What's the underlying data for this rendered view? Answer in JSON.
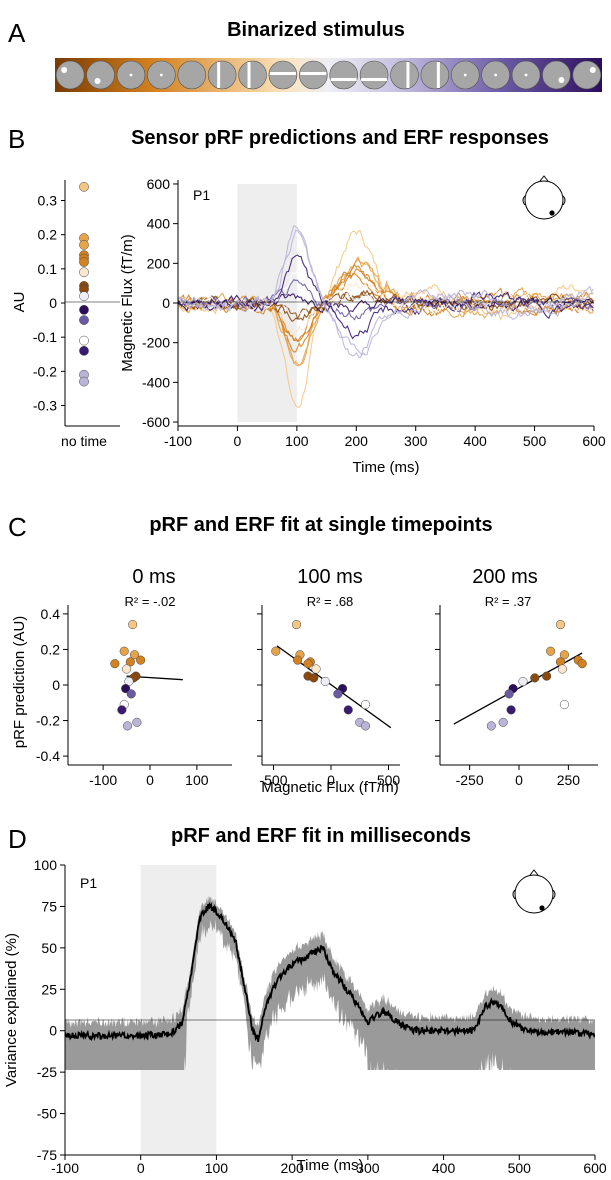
{
  "panels": {
    "a": {
      "letter": "A",
      "title": "Binarized stimulus"
    },
    "b": {
      "letter": "B",
      "title": "Sensor pRF predictions and ERF responses"
    },
    "c": {
      "letter": "C",
      "title": "pRF and ERF fit at single timepoints"
    },
    "d": {
      "letter": "D",
      "title": "pRF and ERF fit in milliseconds"
    }
  },
  "colors": {
    "orange_dark": "#8a4a10",
    "orange": "#d4821f",
    "orange_light": "#f4c684",
    "lavender": "#b9b4d8",
    "purple": "#6a5aa4",
    "purple_dark": "#2c0d5c",
    "gray_fill": "#9a9a9a",
    "shade": "#eeeeee"
  },
  "chart_data": [
    {
      "type": "scatter",
      "panel": "B-left",
      "ylabel": "AU",
      "x_tick_label": "no time",
      "ylim": [
        -0.36,
        0.36
      ],
      "y_ticks": [
        "0.3",
        "0.2",
        "0.1",
        "0",
        "-0.1",
        "-0.2",
        "-0.3"
      ],
      "values": [
        0.34,
        0.19,
        0.17,
        0.14,
        0.13,
        0.12,
        0.09,
        0.05,
        0.04,
        0.02,
        -0.02,
        -0.05,
        -0.11,
        -0.14,
        -0.21,
        -0.23
      ]
    },
    {
      "type": "line",
      "panel": "B-right",
      "label": "P1",
      "xlabel": "Time (ms)",
      "ylabel": "Magnetic Flux (fT/m)",
      "xlim": [
        -100,
        600
      ],
      "ylim": [
        -620,
        620
      ],
      "x_ticks": [
        "-100",
        "0",
        "100",
        "200",
        "300",
        "400",
        "500",
        "600"
      ],
      "y_ticks": [
        "600",
        "400",
        "200",
        "0",
        "-200",
        "-400",
        "-600"
      ],
      "stimulus_window": [
        0,
        100
      ]
    },
    {
      "type": "scatter",
      "panel": "C-0ms",
      "subtitle": "0 ms",
      "r2_text": "R² = -.02",
      "ylabel": "pRF prediction (AU)",
      "xlim": [
        -175,
        175
      ],
      "x_ticks": [
        "-100",
        "0",
        "100"
      ],
      "y_ticks": [
        "0.4",
        "0.2",
        "0",
        "-0.2",
        "-0.4"
      ],
      "ylim": [
        -0.45,
        0.45
      ],
      "points": [
        [
          -37,
          0.34
        ],
        [
          -55,
          0.19
        ],
        [
          -33,
          0.17
        ],
        [
          -20,
          0.14
        ],
        [
          -42,
          0.13
        ],
        [
          -75,
          0.12
        ],
        [
          -50,
          0.09
        ],
        [
          -30,
          0.05
        ],
        [
          -35,
          0.04
        ],
        [
          -45,
          0.02
        ],
        [
          -52,
          -0.02
        ],
        [
          -40,
          -0.05
        ],
        [
          -55,
          -0.11
        ],
        [
          -60,
          -0.14
        ],
        [
          -28,
          -0.21
        ],
        [
          -48,
          -0.23
        ]
      ],
      "fit": [
        [
          -50,
          0.05
        ],
        [
          70,
          0.03
        ]
      ]
    },
    {
      "type": "scatter",
      "panel": "C-100ms",
      "subtitle": "100 ms",
      "r2_text": "R² = .68",
      "xlabel": "Magnetic Flux (fT/m)",
      "xlim": [
        -600,
        600
      ],
      "x_ticks": [
        "-500",
        "0",
        "500"
      ],
      "ylim": [
        -0.45,
        0.45
      ],
      "points": [
        [
          -300,
          0.34
        ],
        [
          -480,
          0.19
        ],
        [
          -270,
          0.17
        ],
        [
          -290,
          0.14
        ],
        [
          -180,
          0.13
        ],
        [
          -200,
          0.12
        ],
        [
          -130,
          0.09
        ],
        [
          -200,
          0.05
        ],
        [
          -150,
          0.04
        ],
        [
          -50,
          0.02
        ],
        [
          100,
          -0.02
        ],
        [
          60,
          -0.05
        ],
        [
          300,
          -0.11
        ],
        [
          150,
          -0.14
        ],
        [
          250,
          -0.21
        ],
        [
          300,
          -0.23
        ]
      ],
      "fit": [
        [
          -470,
          0.22
        ],
        [
          520,
          -0.24
        ]
      ]
    },
    {
      "type": "scatter",
      "panel": "C-200ms",
      "subtitle": "200 ms",
      "r2_text": "R² = .37",
      "xlim": [
        -400,
        400
      ],
      "x_ticks": [
        "-250",
        "0",
        "250"
      ],
      "ylim": [
        -0.45,
        0.45
      ],
      "points": [
        [
          210,
          0.34
        ],
        [
          160,
          0.19
        ],
        [
          230,
          0.17
        ],
        [
          300,
          0.14
        ],
        [
          210,
          0.13
        ],
        [
          320,
          0.12
        ],
        [
          220,
          0.09
        ],
        [
          140,
          0.05
        ],
        [
          80,
          0.04
        ],
        [
          20,
          0.02
        ],
        [
          -30,
          -0.02
        ],
        [
          -50,
          -0.05
        ],
        [
          230,
          -0.11
        ],
        [
          -40,
          -0.14
        ],
        [
          -80,
          -0.21
        ],
        [
          -140,
          -0.23
        ]
      ],
      "fit": [
        [
          -330,
          -0.22
        ],
        [
          320,
          0.18
        ]
      ]
    },
    {
      "type": "area",
      "panel": "D",
      "label": "P1",
      "xlabel": "Time (ms)",
      "ylabel": "Variance explained (%)",
      "xlim": [
        -100,
        600
      ],
      "ylim": [
        -75,
        100
      ],
      "x_ticks": [
        "-100",
        "0",
        "100",
        "200",
        "300",
        "400",
        "500",
        "600"
      ],
      "y_ticks": [
        "100",
        "75",
        "50",
        "25",
        "0",
        "-25",
        "-50",
        "-75"
      ],
      "stimulus_window": [
        0,
        100
      ],
      "mean_curve": [
        [
          -100,
          -3
        ],
        [
          0,
          -3
        ],
        [
          40,
          -2
        ],
        [
          55,
          5
        ],
        [
          65,
          30
        ],
        [
          78,
          68
        ],
        [
          90,
          75
        ],
        [
          100,
          72
        ],
        [
          115,
          62
        ],
        [
          125,
          55
        ],
        [
          140,
          20
        ],
        [
          148,
          0
        ],
        [
          155,
          -5
        ],
        [
          165,
          15
        ],
        [
          180,
          30
        ],
        [
          200,
          40
        ],
        [
          220,
          45
        ],
        [
          240,
          50
        ],
        [
          255,
          35
        ],
        [
          280,
          20
        ],
        [
          300,
          5
        ],
        [
          320,
          12
        ],
        [
          340,
          5
        ],
        [
          360,
          0
        ],
        [
          440,
          0
        ],
        [
          455,
          15
        ],
        [
          470,
          18
        ],
        [
          490,
          5
        ],
        [
          510,
          0
        ],
        [
          600,
          -2
        ]
      ]
    }
  ]
}
